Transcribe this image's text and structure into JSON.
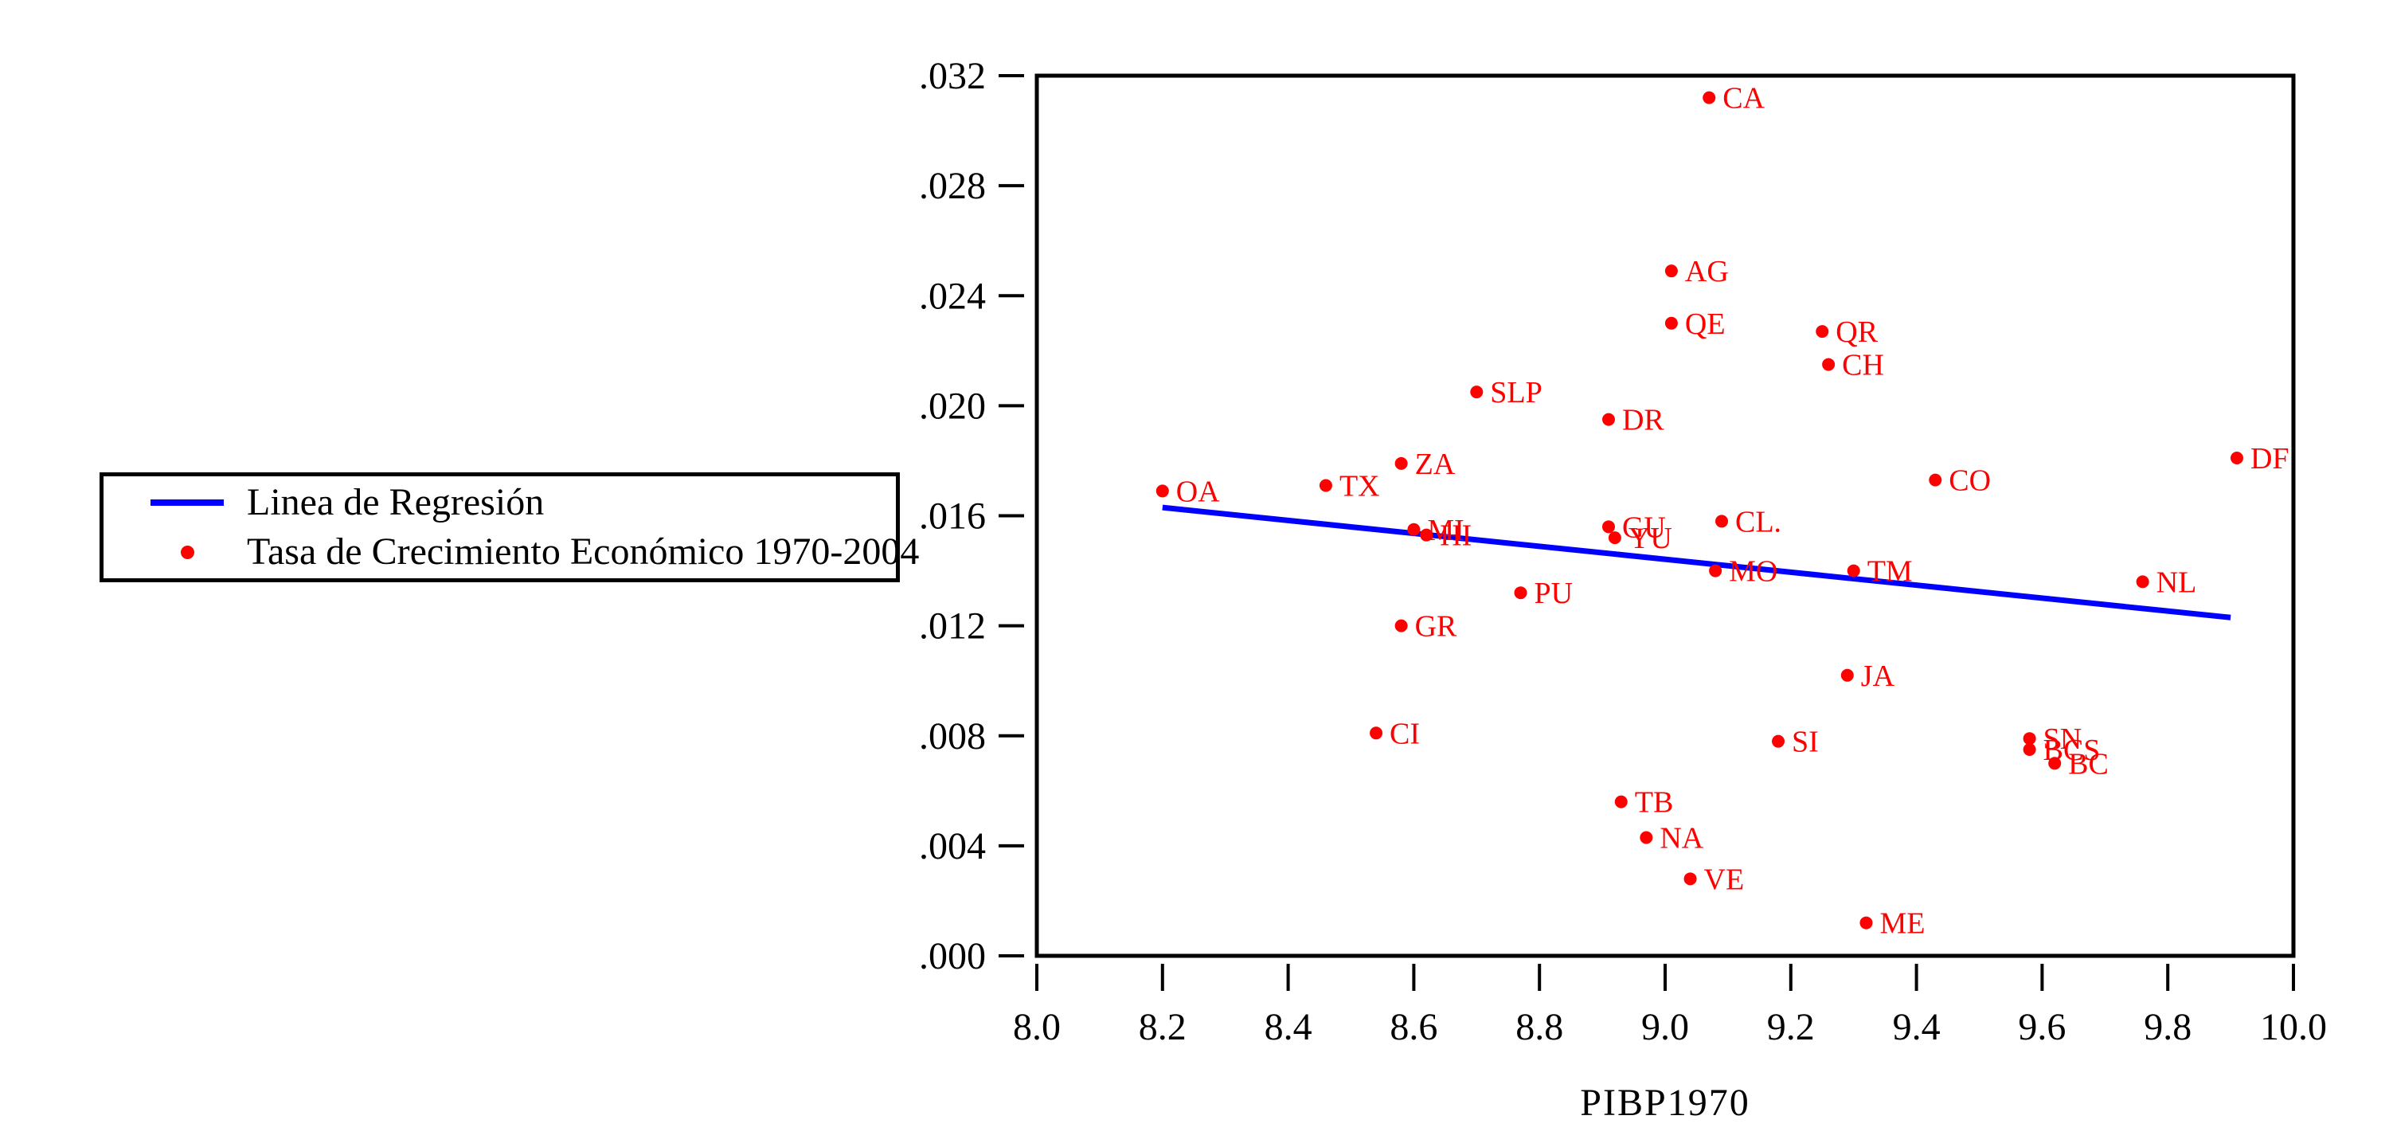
{
  "figure": {
    "background_color": "#ffffff",
    "axis_color": "#000000",
    "point_color": "#ff0000",
    "line_color": "#0000ff"
  },
  "legend": {
    "items": [
      {
        "label": "Linea de Regresión",
        "marker": "line",
        "color": "#0000ff"
      },
      {
        "label": "Tasa de Crecimiento Económico 1970-2004",
        "marker": "dot",
        "color": "#ff0000"
      }
    ]
  },
  "chart_data": {
    "type": "scatter",
    "title": "",
    "xlabel": "PIBP1970",
    "ylabel": "",
    "xlim": [
      8.0,
      10.0
    ],
    "ylim": [
      0.0,
      0.032
    ],
    "grid": false,
    "legend_position": "outside-left",
    "x_tick_values": [
      8.0,
      8.2,
      8.4,
      8.6,
      8.8,
      9.0,
      9.2,
      9.4,
      9.6,
      9.8,
      10.0
    ],
    "x_tick_labels": [
      "8.0",
      "8.2",
      "8.4",
      "8.6",
      "8.8",
      "9.0",
      "9.2",
      "9.4",
      "9.6",
      "9.8",
      "10.0"
    ],
    "y_tick_values": [
      0.0,
      0.004,
      0.008,
      0.012,
      0.016,
      0.02,
      0.024,
      0.028,
      0.032
    ],
    "y_tick_labels": [
      ".000",
      ".004",
      ".008",
      ".012",
      ".016",
      ".020",
      ".024",
      ".028",
      ".032"
    ],
    "series_name": "Tasa de Crecimiento Económico 1970-2004",
    "points": [
      {
        "label": "CA",
        "x": 9.07,
        "y": 0.0312
      },
      {
        "label": "AG",
        "x": 9.01,
        "y": 0.0249
      },
      {
        "label": "QE",
        "x": 9.01,
        "y": 0.023
      },
      {
        "label": "QR",
        "x": 9.25,
        "y": 0.0227
      },
      {
        "label": "CH",
        "x": 9.26,
        "y": 0.0215
      },
      {
        "label": "SLP",
        "x": 8.7,
        "y": 0.0205
      },
      {
        "label": "DR",
        "x": 8.91,
        "y": 0.0195
      },
      {
        "label": "DF",
        "x": 9.91,
        "y": 0.0181
      },
      {
        "label": "ZA",
        "x": 8.58,
        "y": 0.0179
      },
      {
        "label": "CO",
        "x": 9.43,
        "y": 0.0173
      },
      {
        "label": "TX",
        "x": 8.46,
        "y": 0.0171
      },
      {
        "label": "OA",
        "x": 8.2,
        "y": 0.0169
      },
      {
        "label": "CL.",
        "x": 9.09,
        "y": 0.0158
      },
      {
        "label": "GU",
        "x": 8.91,
        "y": 0.0156
      },
      {
        "label": "MI",
        "x": 8.6,
        "y": 0.0155
      },
      {
        "label": "HI",
        "x": 8.62,
        "y": 0.0153
      },
      {
        "label": "YU",
        "x": 8.92,
        "y": 0.0152
      },
      {
        "label": "TM",
        "x": 9.3,
        "y": 0.014
      },
      {
        "label": "MO",
        "x": 9.08,
        "y": 0.014
      },
      {
        "label": "NL",
        "x": 9.76,
        "y": 0.0136
      },
      {
        "label": "PU",
        "x": 8.77,
        "y": 0.0132
      },
      {
        "label": "GR",
        "x": 8.58,
        "y": 0.012
      },
      {
        "label": "JA",
        "x": 9.29,
        "y": 0.0102
      },
      {
        "label": "CI",
        "x": 8.54,
        "y": 0.0081
      },
      {
        "label": "SN",
        "x": 9.58,
        "y": 0.0079
      },
      {
        "label": "SI",
        "x": 9.18,
        "y": 0.0078
      },
      {
        "label": "BCS",
        "x": 9.58,
        "y": 0.0075
      },
      {
        "label": "BC",
        "x": 9.62,
        "y": 0.007
      },
      {
        "label": "TB",
        "x": 8.93,
        "y": 0.0056
      },
      {
        "label": "NA",
        "x": 8.97,
        "y": 0.0043
      },
      {
        "label": "VE",
        "x": 9.04,
        "y": 0.0028
      },
      {
        "label": "ME",
        "x": 9.32,
        "y": 0.0012
      }
    ],
    "regression_line": {
      "x1": 8.2,
      "y1": 0.0163,
      "x2": 9.9,
      "y2": 0.0123
    }
  }
}
